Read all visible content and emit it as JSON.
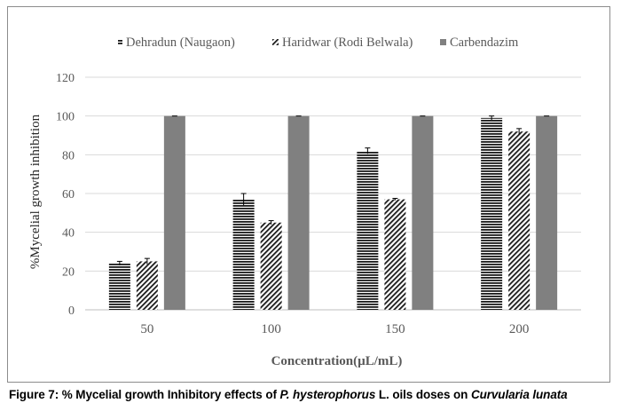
{
  "chart_data": {
    "type": "bar",
    "categories": [
      "50",
      "100",
      "150",
      "200"
    ],
    "series": [
      {
        "name": "Dehradun (Naugaon)",
        "values": [
          24,
          57,
          82,
          99
        ],
        "errors": [
          1,
          3,
          1.5,
          1
        ],
        "pattern": "horizontal-lines"
      },
      {
        "name": "Haridwar (Rodi Belwala)",
        "values": [
          25,
          45,
          57,
          92
        ],
        "errors": [
          1.5,
          1,
          0.5,
          1.5
        ],
        "pattern": "diagonal-lines"
      },
      {
        "name": "Carbendazim",
        "values": [
          100,
          100,
          100,
          100
        ],
        "errors": [
          0,
          0,
          0,
          0
        ],
        "pattern": "solid-gray"
      }
    ],
    "title": "",
    "xlabel": "Concentration(µL/mL)",
    "ylabel": "%Mycelial growth inhibition",
    "ylim": [
      0,
      120
    ],
    "yticks": [
      0,
      20,
      40,
      60,
      80,
      100,
      120
    ],
    "grid": true,
    "legend": "top"
  },
  "caption": {
    "prefix": "Figure 7: % Mycelial growth Inhibitory effects of ",
    "species": "P. hysterophorus",
    "middle": " L. oils doses on ",
    "organism": "Curvularia lunata"
  },
  "colors": {
    "bar_dark": "#1a1a1a",
    "bar_gray": "#808080",
    "grid": "#d9d9d9",
    "axis_text": "#595959"
  }
}
